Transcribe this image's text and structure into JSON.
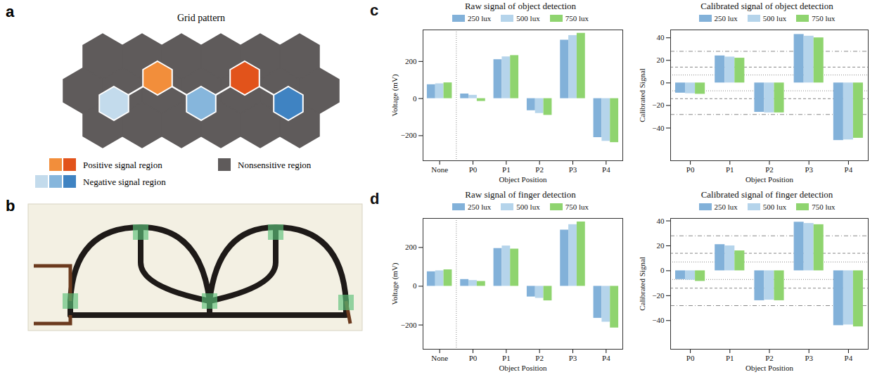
{
  "diagram": {
    "panel_label": "a",
    "title": "Grid pattern",
    "regions": [
      {
        "label": "Positive signal region",
        "colors": [
          "#f28e3b",
          "#e2531b"
        ]
      },
      {
        "label": "Negative signal region",
        "colors": [
          "#c3dbec",
          "#86b6dc",
          "#3f83c2"
        ]
      },
      {
        "label": "Nonsensitive region",
        "colors": [
          "#5f5b5b"
        ]
      }
    ]
  },
  "photo": {
    "panel_label": "b"
  },
  "chart_data": [
    {
      "type": "bar",
      "panel_label": "c",
      "title": "Raw signal of object detection",
      "xlabel": "Object Position",
      "ylabel": "Voltage (mV)",
      "categories": [
        "None",
        "P0",
        "P1",
        "P2",
        "P3",
        "P4"
      ],
      "series": [
        {
          "name": "250 lux",
          "color": "#82b1d9",
          "values": [
            75,
            25,
            210,
            -65,
            315,
            -210
          ]
        },
        {
          "name": "500 lux",
          "color": "#b5d4eb",
          "values": [
            80,
            18,
            225,
            -80,
            340,
            -230
          ]
        },
        {
          "name": "750 lux",
          "color": "#8fd46f",
          "values": [
            85,
            -15,
            232,
            -90,
            352,
            -237
          ]
        }
      ],
      "ylim": [
        -335,
        370
      ],
      "yticks": [
        -200,
        0,
        200
      ],
      "grid": false,
      "legend": "top"
    },
    {
      "type": "bar",
      "title": "Calibrated signal of object detection",
      "xlabel": "Object Position",
      "ylabel": "Calibrated Signal",
      "categories": [
        "P0",
        "P1",
        "P2",
        "P3",
        "P4"
      ],
      "series": [
        {
          "name": "250 lux",
          "color": "#82b1d9",
          "values": [
            -9,
            24,
            -26,
            43,
            -51
          ]
        },
        {
          "name": "500 lux",
          "color": "#b5d4eb",
          "values": [
            -9.5,
            23,
            -26.5,
            41.5,
            -50.5
          ]
        },
        {
          "name": "750 lux",
          "color": "#8fd46f",
          "values": [
            -10,
            22,
            -26.5,
            40,
            -49
          ]
        }
      ],
      "thresholds": [
        {
          "value": 28,
          "line_style": "dashdot"
        },
        {
          "value": 14,
          "line_style": "dashed"
        },
        {
          "value": 7,
          "line_style": "dotted"
        },
        {
          "value": -7,
          "line_style": "dotted"
        },
        {
          "value": -14,
          "line_style": "dashed"
        },
        {
          "value": -28,
          "line_style": "dashdot"
        }
      ],
      "ylim": [
        -69,
        47
      ],
      "yticks": [
        -40,
        -20,
        0,
        20,
        40
      ],
      "grid": false,
      "legend": "top"
    },
    {
      "type": "bar",
      "panel_label": "d",
      "title": "Raw signal of finger detection",
      "xlabel": "Object Position",
      "ylabel": "Voltage (mV)",
      "categories": [
        "None",
        "P0",
        "P1",
        "P2",
        "P3",
        "P4"
      ],
      "series": [
        {
          "name": "250 lux",
          "color": "#82b1d9",
          "values": [
            75,
            35,
            195,
            -55,
            290,
            -165
          ]
        },
        {
          "name": "500 lux",
          "color": "#b5d4eb",
          "values": [
            80,
            30,
            208,
            -62,
            318,
            -185
          ]
        },
        {
          "name": "750 lux",
          "color": "#8fd46f",
          "values": [
            85,
            25,
            192,
            -75,
            332,
            -215
          ]
        }
      ],
      "ylim": [
        -325,
        350
      ],
      "yticks": [
        -200,
        0,
        200
      ],
      "grid": false,
      "legend": "top"
    },
    {
      "type": "bar",
      "title": "Calibrated signal of finger detection",
      "xlabel": "Object Position",
      "ylabel": "Calibrated Signal",
      "categories": [
        "P0",
        "P1",
        "P2",
        "P3",
        "P4"
      ],
      "series": [
        {
          "name": "250 lux",
          "color": "#82b1d9",
          "values": [
            -7,
            21,
            -24,
            39,
            -44
          ]
        },
        {
          "name": "500 lux",
          "color": "#b5d4eb",
          "values": [
            -7.5,
            20,
            -23.5,
            38,
            -43.5
          ]
        },
        {
          "name": "750 lux",
          "color": "#8fd46f",
          "values": [
            -8.5,
            16,
            -24,
            37,
            -45
          ]
        }
      ],
      "thresholds": [
        {
          "value": 28,
          "line_style": "dashdot"
        },
        {
          "value": 14,
          "line_style": "dashed"
        },
        {
          "value": 7,
          "line_style": "dotted"
        },
        {
          "value": -7,
          "line_style": "dotted"
        },
        {
          "value": -14,
          "line_style": "dashed"
        },
        {
          "value": -28,
          "line_style": "dashdot"
        }
      ],
      "ylim": [
        -63,
        42
      ],
      "yticks": [
        -40,
        -20,
        0,
        20,
        40
      ],
      "grid": false,
      "legend": "top"
    }
  ]
}
